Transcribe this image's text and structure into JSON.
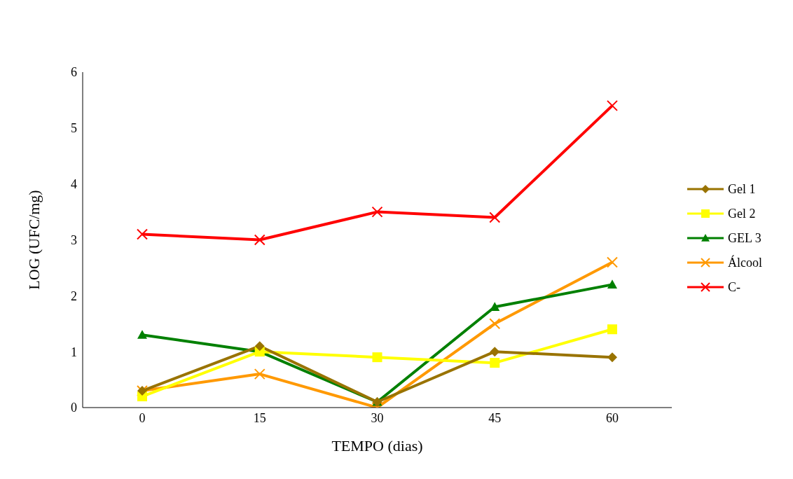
{
  "chart_data": {
    "type": "line",
    "xlabel": "TEMPO (dias)",
    "ylabel": "LOG (UFC/mg)",
    "categories": [
      "0",
      "15",
      "30",
      "45",
      "60"
    ],
    "ylim": [
      0,
      6
    ],
    "yticks": [
      0,
      1,
      2,
      3,
      4,
      5,
      6
    ],
    "grid": false,
    "legend": "right",
    "series": [
      {
        "name": "Gel 1",
        "color": "#997300",
        "marker": "diamond",
        "values": [
          0.3,
          1.1,
          0.1,
          1.0,
          0.9
        ]
      },
      {
        "name": "Gel 2",
        "color": "#ffff00",
        "marker": "square",
        "values": [
          0.2,
          1.0,
          0.9,
          0.8,
          1.4
        ]
      },
      {
        "name": "GEL 3",
        "color": "#008000",
        "marker": "triangle",
        "values": [
          1.3,
          1.0,
          0.1,
          1.8,
          2.2
        ]
      },
      {
        "name": "Álcool",
        "color": "#ff9900",
        "marker": "cross",
        "values": [
          0.3,
          0.6,
          0.0,
          1.5,
          2.6
        ]
      },
      {
        "name": "C-",
        "color": "#ff0000",
        "marker": "cross",
        "values": [
          3.1,
          3.0,
          3.5,
          3.4,
          5.4
        ]
      }
    ]
  }
}
